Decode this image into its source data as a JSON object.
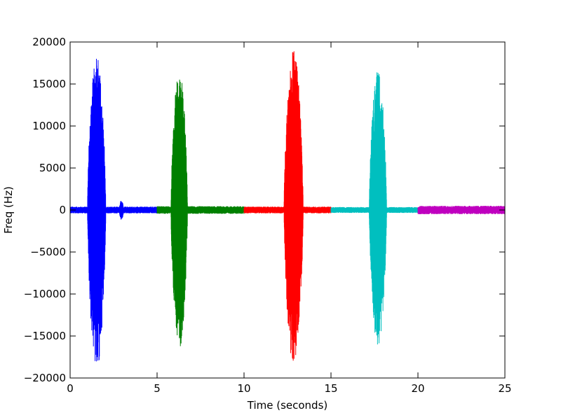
{
  "chart_data": {
    "type": "line",
    "title": "",
    "xlabel": "Time (seconds)",
    "ylabel": "Freq (Hz)",
    "xlim": [
      0,
      25
    ],
    "ylim": [
      -20000,
      20000
    ],
    "xticks": [
      0,
      5,
      10,
      15,
      20,
      25
    ],
    "xtick_labels": [
      "0",
      "5",
      "10",
      "15",
      "20",
      "25"
    ],
    "yticks": [
      -20000,
      -15000,
      -10000,
      -5000,
      0,
      5000,
      10000,
      15000,
      20000
    ],
    "ytick_labels": [
      "−20000",
      "−15000",
      "−10000",
      "−5000",
      "0",
      "5000",
      "10000",
      "15000",
      "20000"
    ],
    "grid": false,
    "legend": "none",
    "series": [
      {
        "color": "#0000ff",
        "x_range": [
          0,
          5
        ],
        "noise_amplitude": 400,
        "burst": {
          "start": 1.0,
          "end": 2.05,
          "peak_pos": 18200,
          "peak_neg": -19000
        },
        "small_burst": {
          "start": 2.8,
          "end": 3.1,
          "amplitude": 1200
        }
      },
      {
        "color": "#008000",
        "x_range": [
          5,
          10
        ],
        "noise_amplitude": 450,
        "burst": {
          "start": 5.8,
          "end": 6.75,
          "peak_pos": 16500,
          "peak_neg": -16500
        }
      },
      {
        "color": "#ff0000",
        "x_range": [
          10,
          15
        ],
        "noise_amplitude": 400,
        "burst": {
          "start": 12.3,
          "end": 13.4,
          "peak_pos": 19000,
          "peak_neg": -18500
        }
      },
      {
        "color": "#00bfbf",
        "x_range": [
          15,
          20
        ],
        "noise_amplitude": 350,
        "burst": {
          "start": 17.2,
          "end": 18.2,
          "peak_pos": 16600,
          "peak_neg": -16200
        }
      },
      {
        "color": "#bf00bf",
        "x_range": [
          20,
          25
        ],
        "noise_amplitude": 500
      }
    ]
  }
}
